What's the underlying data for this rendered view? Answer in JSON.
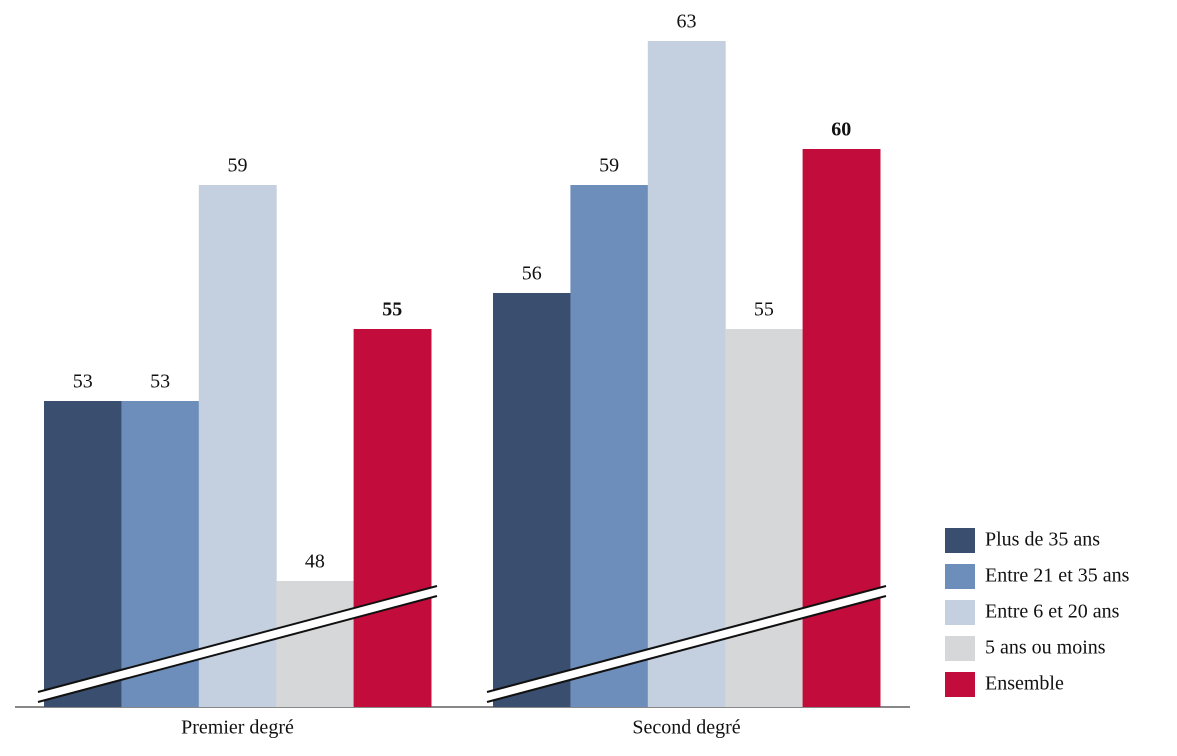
{
  "chart_data": {
    "type": "bar",
    "categories": [
      "Premier degré",
      "Second degré"
    ],
    "series": [
      {
        "name": "Plus de 35 ans",
        "color": "#3a4f6f",
        "values": [
          53,
          56
        ]
      },
      {
        "name": "Entre 21 et 35 ans",
        "color": "#6d8eba",
        "values": [
          53,
          59
        ]
      },
      {
        "name": "Entre 6 et 20 ans",
        "color": "#c4cfe0",
        "values": [
          59,
          63
        ]
      },
      {
        "name": "5 ans ou moins",
        "color": "#d6d7d9",
        "values": [
          48,
          55
        ]
      },
      {
        "name": "Ensemble",
        "color": "#c20c3b",
        "values": [
          55,
          60
        ]
      }
    ],
    "ylim": [
      44.5,
      64
    ],
    "legend": "right",
    "axis_break": true
  }
}
